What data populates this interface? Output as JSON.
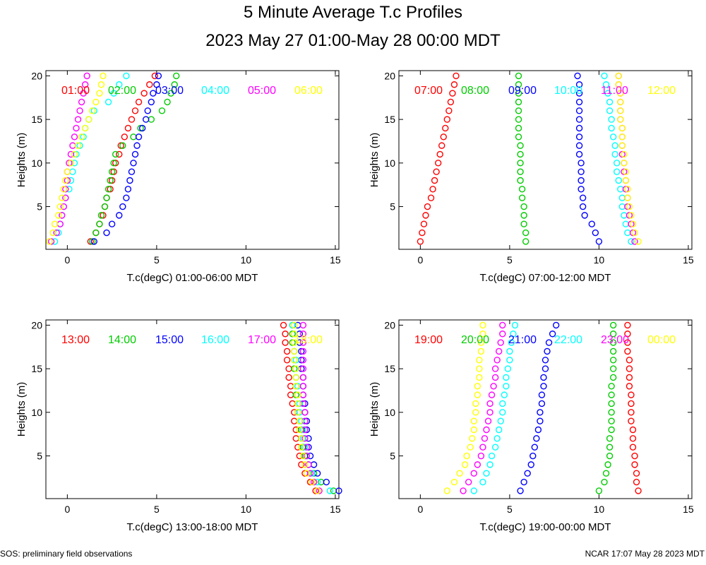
{
  "title": "5 Minute Average T.c Profiles",
  "subtitle": "2023 May 27 01:00-May 28 00:00 MDT",
  "footer_left": "SOS: preliminary field observations",
  "footer_right": "NCAR 17:07 May 28 2023 MDT",
  "chart_data": [
    {
      "type": "scatter",
      "xlabel": "T.c(degC) 01:00-06:00 MDT",
      "ylabel": "Heights (m)",
      "xlim": [
        -1.2,
        15.2
      ],
      "ylim": [
        0.1,
        20.6
      ],
      "xticks": [
        0,
        5,
        10,
        15
      ],
      "yticks": [
        5,
        10,
        15,
        20
      ],
      "series": [
        {
          "name": "01:00",
          "color": "#ff0000",
          "x": [
            1.3,
            1.6,
            1.8,
            2.0,
            2.1,
            2.2,
            2.4,
            2.5,
            2.6,
            2.7,
            2.9,
            3.0,
            3.2,
            3.4,
            3.6,
            3.8,
            4.0,
            4.3,
            4.6,
            4.9
          ]
        },
        {
          "name": "02:00",
          "color": "#00cc00",
          "x": [
            1.4,
            1.6,
            1.8,
            1.9,
            2.1,
            2.2,
            2.3,
            2.4,
            2.5,
            2.6,
            2.7,
            3.1,
            3.7,
            4.1,
            4.7,
            5.3,
            5.6,
            5.8,
            6.0,
            6.1
          ]
        },
        {
          "name": "03:00",
          "color": "#0000ff",
          "x": [
            1.5,
            2.2,
            2.5,
            2.9,
            3.1,
            3.3,
            3.4,
            3.5,
            3.6,
            3.7,
            3.8,
            3.9,
            4.0,
            4.2,
            4.4,
            4.5,
            4.7,
            4.8,
            5.0,
            5.1
          ]
        },
        {
          "name": "04:00",
          "color": "#00ffff",
          "x": [
            -0.7,
            -0.5,
            -0.4,
            -0.3,
            -0.2,
            -0.1,
            0.1,
            0.2,
            0.3,
            0.4,
            0.5,
            0.7,
            0.9,
            1.0,
            1.2,
            1.5,
            2.3,
            2.6,
            2.9,
            3.3
          ]
        },
        {
          "name": "05:00",
          "color": "#ff00ff",
          "x": [
            -0.9,
            -0.6,
            -0.4,
            -0.3,
            -0.2,
            -0.1,
            -0.1,
            0.0,
            0.0,
            0.1,
            0.2,
            0.3,
            0.4,
            0.5,
            0.6,
            0.7,
            0.8,
            0.9,
            1.0,
            1.1
          ]
        },
        {
          "name": "06:00",
          "color": "#ffff00",
          "x": [
            -1.0,
            -0.8,
            -0.7,
            -0.5,
            -0.4,
            -0.3,
            -0.2,
            -0.1,
            0.0,
            0.2,
            0.4,
            0.6,
            0.8,
            1.0,
            1.2,
            1.4,
            1.6,
            1.8,
            1.9,
            2.0
          ]
        }
      ]
    },
    {
      "type": "scatter",
      "xlabel": "T.c(degC) 07:00-12:00 MDT",
      "ylabel": "Heights (m)",
      "xlim": [
        -1.2,
        15.2
      ],
      "ylim": [
        0.1,
        20.6
      ],
      "xticks": [
        0,
        5,
        10,
        15
      ],
      "yticks": [
        5,
        10,
        15,
        20
      ],
      "series": [
        {
          "name": "07:00",
          "color": "#ff0000",
          "x": [
            0.0,
            0.1,
            0.2,
            0.3,
            0.4,
            0.6,
            0.7,
            0.8,
            0.9,
            1.0,
            1.1,
            1.2,
            1.3,
            1.4,
            1.5,
            1.6,
            1.7,
            1.8,
            1.9,
            2.0
          ]
        },
        {
          "name": "08:00",
          "color": "#00cc00",
          "x": [
            5.9,
            5.9,
            5.8,
            5.8,
            5.8,
            5.7,
            5.7,
            5.6,
            5.6,
            5.6,
            5.6,
            5.6,
            5.5,
            5.5,
            5.5,
            5.5,
            5.5,
            5.5,
            5.5,
            5.5
          ]
        },
        {
          "name": "09:00",
          "color": "#0000ff",
          "x": [
            10.0,
            9.8,
            9.6,
            9.2,
            9.1,
            9.1,
            9.0,
            9.0,
            9.0,
            9.0,
            8.9,
            8.9,
            8.9,
            8.9,
            8.9,
            8.9,
            8.9,
            8.9,
            8.9,
            8.8
          ]
        },
        {
          "name": "10:00",
          "color": "#00ffff",
          "x": [
            11.8,
            11.6,
            11.5,
            11.4,
            11.3,
            11.3,
            11.2,
            11.1,
            11.0,
            11.0,
            10.9,
            10.9,
            10.8,
            10.7,
            10.7,
            10.6,
            10.6,
            10.5,
            10.4,
            10.3
          ]
        },
        {
          "name": "11:00",
          "color": "#ff00ff",
          "x": [
            12.0,
            11.9,
            11.8,
            11.7,
            11.6,
            11.6,
            11.5,
            11.5,
            11.4,
            11.4,
            11.3,
            11.3,
            11.3,
            11.3,
            11.2,
            11.2,
            11.2,
            11.2,
            11.1,
            11.1
          ]
        },
        {
          "name": "12:00",
          "color": "#ffff00",
          "x": [
            12.2,
            12.0,
            11.9,
            11.8,
            11.7,
            11.6,
            11.6,
            11.5,
            11.5,
            11.4,
            11.4,
            11.3,
            11.3,
            11.3,
            11.2,
            11.2,
            11.2,
            11.2,
            11.1,
            11.1
          ]
        }
      ]
    },
    {
      "type": "scatter",
      "xlabel": "T.c(degC) 13:00-18:00 MDT",
      "ylabel": "Heights (m)",
      "xlim": [
        -1.2,
        15.2
      ],
      "ylim": [
        0.1,
        20.6
      ],
      "xticks": [
        0,
        5,
        10,
        15
      ],
      "yticks": [
        5,
        10,
        15,
        20
      ],
      "series": [
        {
          "name": "13:00",
          "color": "#ff0000",
          "x": [
            13.9,
            13.6,
            13.3,
            13.1,
            13.0,
            12.9,
            12.8,
            12.8,
            12.7,
            12.7,
            12.6,
            12.5,
            12.5,
            12.4,
            12.4,
            12.3,
            12.3,
            12.2,
            12.2,
            12.1
          ]
        },
        {
          "name": "14:00",
          "color": "#00cc00",
          "x": [
            14.9,
            14.2,
            13.8,
            13.5,
            13.3,
            13.2,
            13.1,
            13.1,
            13.0,
            12.9,
            12.9,
            12.8,
            12.8,
            12.8,
            12.7,
            12.7,
            12.7,
            12.6,
            12.6,
            12.6
          ]
        },
        {
          "name": "15:00",
          "color": "#0000ff",
          "x": [
            15.2,
            14.5,
            14.0,
            13.8,
            13.6,
            13.5,
            13.5,
            13.4,
            13.4,
            13.3,
            13.3,
            13.2,
            13.2,
            13.2,
            13.1,
            13.1,
            13.1,
            13.0,
            13.0,
            12.9
          ]
        },
        {
          "name": "16:00",
          "color": "#00ffff",
          "x": [
            14.7,
            14.0,
            13.7,
            13.5,
            13.4,
            13.3,
            13.2,
            13.2,
            13.1,
            13.0,
            13.0,
            12.9,
            12.9,
            12.8,
            12.8,
            12.8,
            12.7,
            12.7,
            12.7,
            12.6
          ]
        },
        {
          "name": "17:00",
          "color": "#ff00ff",
          "x": [
            14.1,
            13.8,
            13.6,
            13.5,
            13.4,
            13.4,
            13.3,
            13.3,
            13.3,
            13.3,
            13.2,
            13.2,
            13.2,
            13.2,
            13.2,
            13.2,
            13.2,
            13.2,
            13.2,
            13.2
          ]
        },
        {
          "name": "18:00",
          "color": "#ffff00",
          "x": [
            14.0,
            13.7,
            13.4,
            13.3,
            13.2,
            13.1,
            13.1,
            13.0,
            13.0,
            12.9,
            12.9,
            12.9,
            12.8,
            12.8,
            12.8,
            12.7,
            12.7,
            12.7,
            12.7,
            12.7
          ]
        }
      ]
    },
    {
      "type": "scatter",
      "xlabel": "T.c(degC) 19:00-00:00 MDT",
      "ylabel": "Heights (m)",
      "xlim": [
        -1.2,
        15.2
      ],
      "ylim": [
        0.1,
        20.6
      ],
      "xticks": [
        0,
        5,
        10,
        15
      ],
      "yticks": [
        5,
        10,
        15,
        20
      ],
      "series": [
        {
          "name": "19:00",
          "color": "#ff0000",
          "x": [
            12.2,
            12.1,
            12.1,
            12.0,
            12.0,
            11.9,
            11.9,
            11.9,
            11.8,
            11.8,
            11.8,
            11.8,
            11.7,
            11.7,
            11.7,
            11.7,
            11.6,
            11.6,
            11.6,
            11.6
          ]
        },
        {
          "name": "20:00",
          "color": "#00cc00",
          "x": [
            10.0,
            10.3,
            10.4,
            10.5,
            10.6,
            10.6,
            10.6,
            10.7,
            10.7,
            10.7,
            10.7,
            10.7,
            10.7,
            10.8,
            10.8,
            10.8,
            10.8,
            10.8,
            10.8,
            10.8
          ]
        },
        {
          "name": "21:00",
          "color": "#0000ff",
          "x": [
            5.6,
            5.8,
            6.0,
            6.2,
            6.3,
            6.4,
            6.5,
            6.6,
            6.7,
            6.7,
            6.8,
            6.8,
            6.9,
            6.9,
            7.0,
            7.0,
            7.1,
            7.2,
            7.4,
            7.6
          ]
        },
        {
          "name": "22:00",
          "color": "#00ffff",
          "x": [
            3.0,
            3.5,
            3.7,
            3.9,
            4.0,
            4.2,
            4.3,
            4.4,
            4.5,
            4.6,
            4.6,
            4.7,
            4.8,
            4.8,
            4.9,
            5.0,
            5.0,
            5.1,
            5.2,
            5.3
          ]
        },
        {
          "name": "23:00",
          "color": "#ff00ff",
          "x": [
            2.4,
            2.7,
            3.0,
            3.2,
            3.4,
            3.5,
            3.6,
            3.7,
            3.8,
            3.9,
            3.9,
            4.0,
            4.1,
            4.2,
            4.2,
            4.3,
            4.4,
            4.5,
            4.6,
            4.6
          ]
        },
        {
          "name": "00:00",
          "color": "#ffff00",
          "x": [
            1.5,
            1.9,
            2.2,
            2.5,
            2.6,
            2.8,
            2.9,
            3.0,
            3.0,
            3.1,
            3.1,
            3.2,
            3.2,
            3.3,
            3.3,
            3.3,
            3.4,
            3.4,
            3.5,
            3.5
          ]
        }
      ]
    }
  ]
}
